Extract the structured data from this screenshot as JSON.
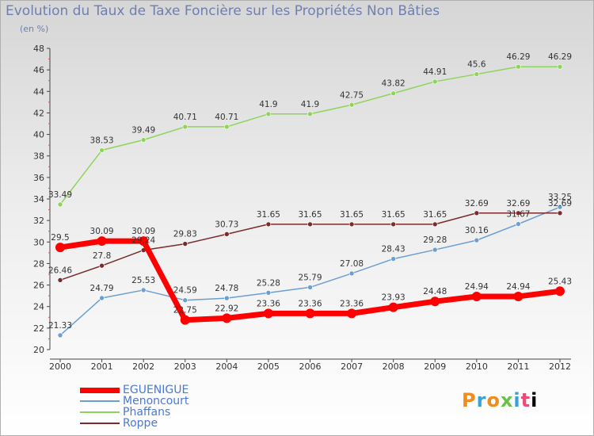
{
  "title": "Evolution du Taux de Taxe Foncière sur les Propriétés Non Bâties",
  "unit_label": "(en %)",
  "logo_text": "Proxiti",
  "chart_data": {
    "type": "line",
    "title": "Evolution du Taux de Taxe Foncière sur les Propriétés Non Bâties",
    "ylabel": "(en %)",
    "xlabel": "",
    "x": [
      "2000",
      "2001",
      "2002",
      "2003",
      "2004",
      "2005",
      "2006",
      "2007",
      "2008",
      "2009",
      "2010",
      "2011",
      "2012"
    ],
    "ylim": [
      20,
      48
    ],
    "yticks": [
      20,
      22,
      24,
      26,
      28,
      30,
      32,
      34,
      36,
      38,
      40,
      42,
      44,
      46,
      48
    ],
    "grid": false,
    "legend_position": "bottom-left",
    "series": [
      {
        "name": "EGUENIGUE",
        "color": "#ff0000",
        "thick": true,
        "values": [
          29.5,
          30.09,
          30.09,
          22.75,
          22.92,
          23.36,
          23.36,
          23.36,
          23.93,
          24.48,
          24.94,
          24.94,
          25.43
        ],
        "labels": [
          "29.5",
          "30.09",
          "30.09",
          "22.75",
          "22.92",
          "23.36",
          "23.36",
          "23.36",
          "23.93",
          "24.48",
          "24.94",
          "24.94",
          "25.43"
        ]
      },
      {
        "name": "Menoncourt",
        "color": "#6a9fd0",
        "thick": false,
        "values": [
          21.33,
          24.79,
          25.53,
          24.59,
          24.78,
          25.28,
          25.79,
          27.08,
          28.43,
          29.28,
          30.16,
          31.67,
          33.25
        ],
        "labels": [
          "21.33",
          "24.79",
          "25.53",
          "24.59",
          "24.78",
          "25.28",
          "25.79",
          "27.08",
          "28.43",
          "29.28",
          "30.16",
          "31.67",
          "33.25"
        ]
      },
      {
        "name": "Phaffans",
        "color": "#8ed45a",
        "thick": false,
        "values": [
          33.49,
          38.53,
          39.49,
          40.71,
          40.71,
          41.9,
          41.9,
          42.75,
          43.82,
          44.91,
          45.6,
          46.29,
          46.29
        ],
        "labels": [
          "33.49",
          "38.53",
          "39.49",
          "40.71",
          "40.71",
          "41.9",
          "41.9",
          "42.75",
          "43.82",
          "44.91",
          "45.6",
          "46.29",
          "46.29"
        ]
      },
      {
        "name": "Roppe",
        "color": "#7a2b2b",
        "thick": false,
        "values": [
          26.46,
          27.8,
          29.24,
          29.83,
          30.73,
          31.65,
          31.65,
          31.65,
          31.65,
          31.65,
          32.69,
          32.69,
          32.69
        ],
        "labels": [
          "26.46",
          "27.8",
          "29.24",
          "29.83",
          "30.73",
          "31.65",
          "31.65",
          "31.65",
          "31.65",
          "31.65",
          "32.69",
          "32.69",
          "32.69"
        ]
      }
    ]
  }
}
